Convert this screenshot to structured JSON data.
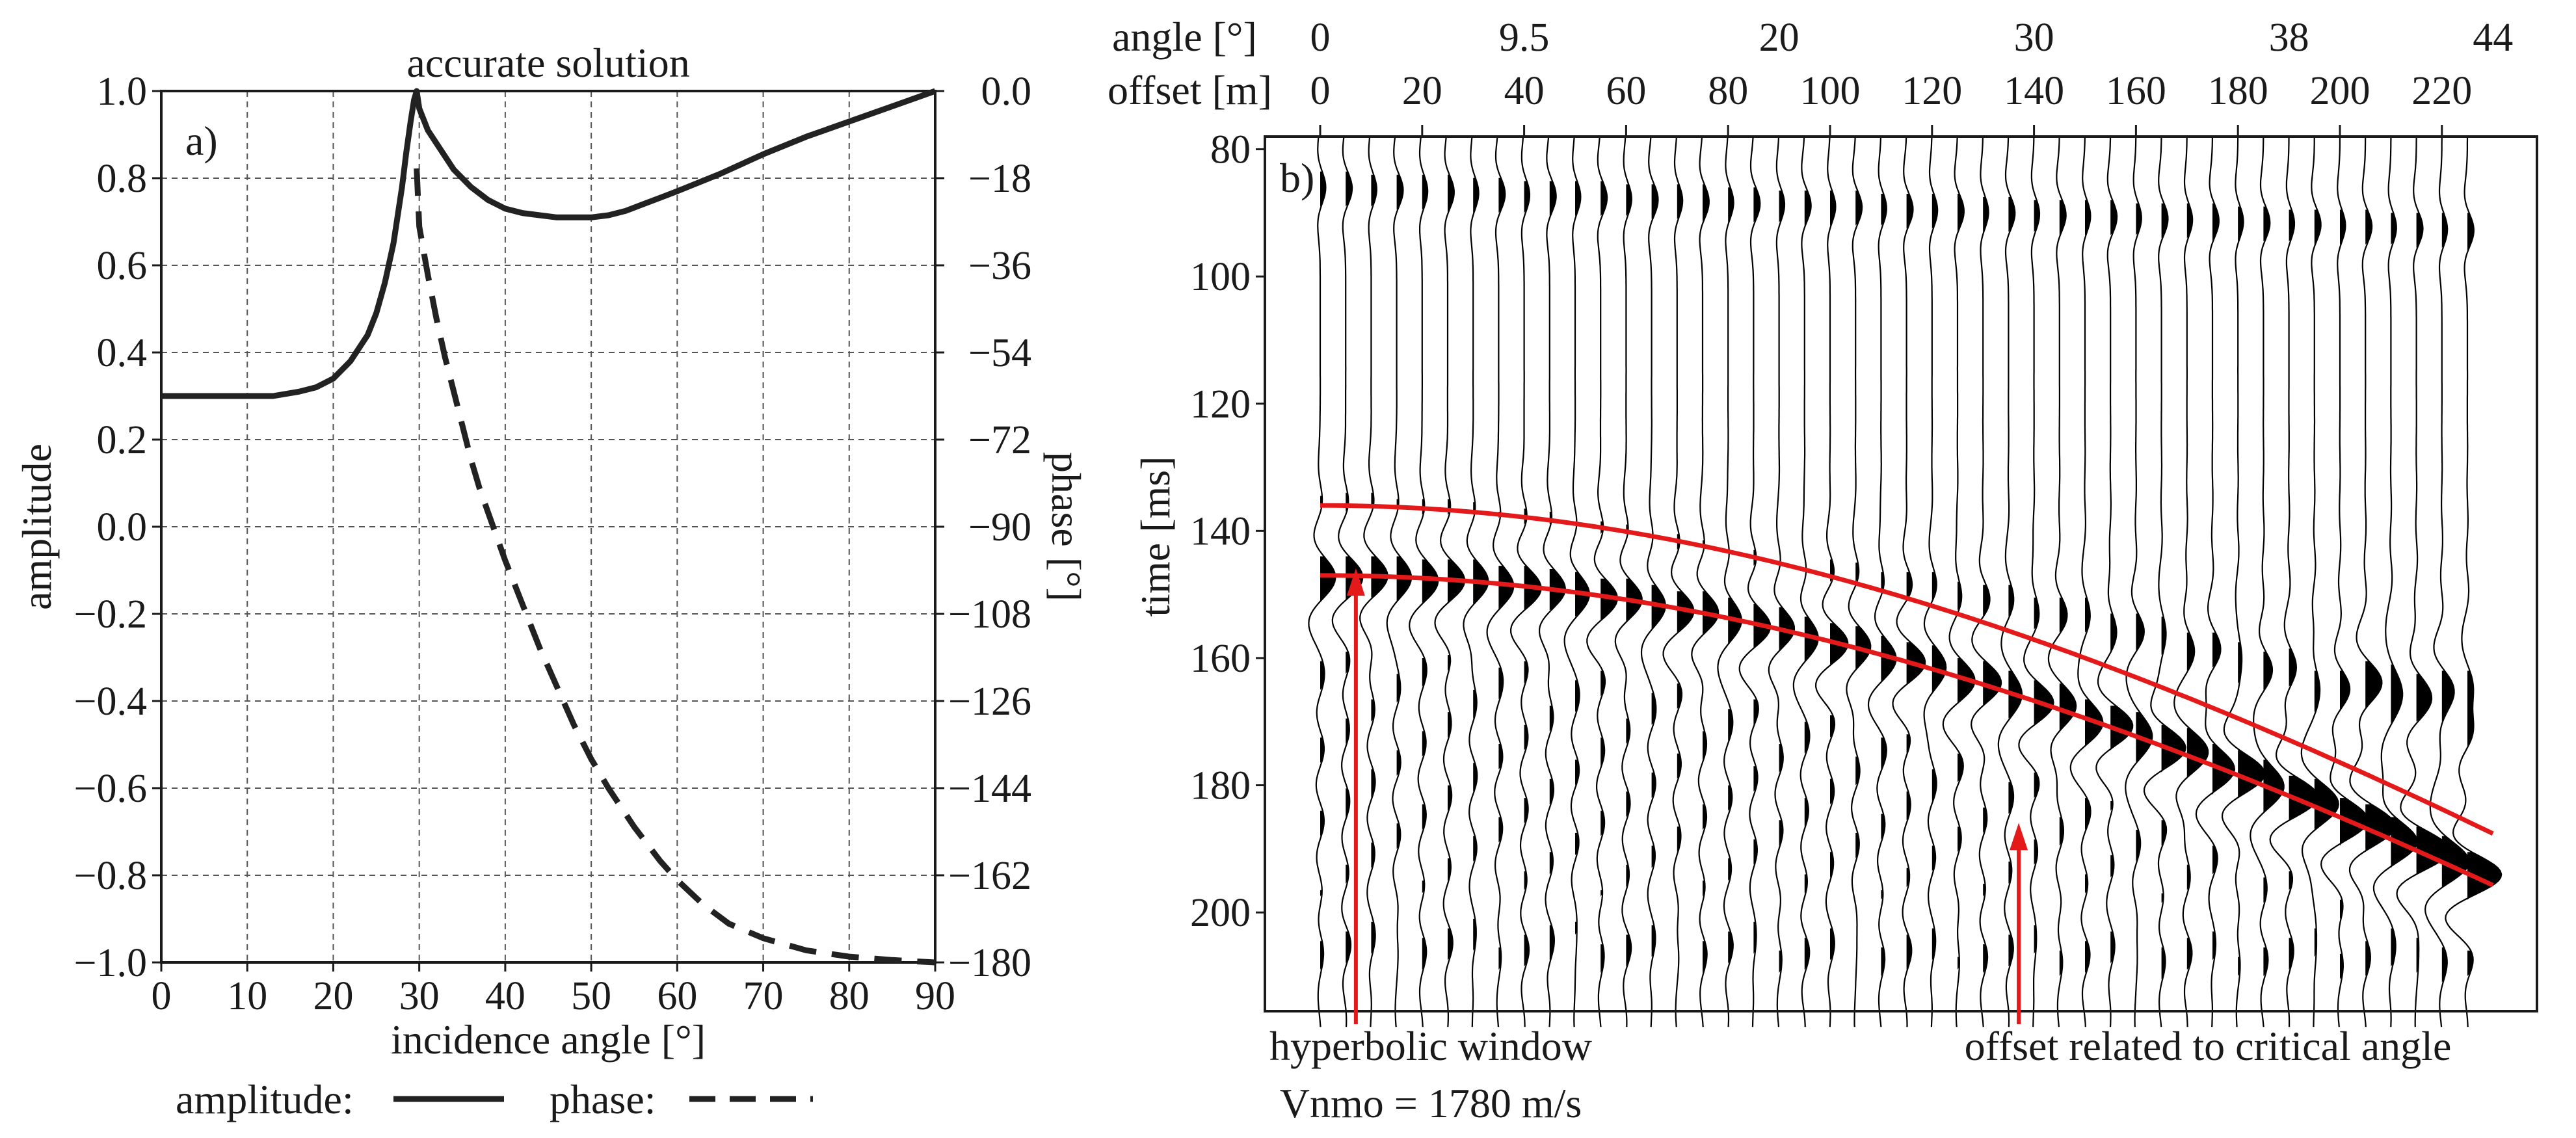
{
  "chart_data": [
    {
      "type": "line",
      "panel_label": "a)",
      "title": "accurate solution",
      "xlabel": "incidence angle [°]",
      "ylabel_left": "amplitude",
      "ylabel_right": "phase [°]",
      "xlim": [
        0,
        90
      ],
      "ylim_left": [
        -1.0,
        1.0
      ],
      "ylim_right": [
        -180,
        0
      ],
      "x_ticks": [
        "0",
        "10",
        "20",
        "30",
        "40",
        "50",
        "60",
        "70",
        "80",
        "90"
      ],
      "y_ticks_left": [
        "1.0",
        "0.8",
        "0.6",
        "0.4",
        "0.2",
        "0.0",
        "−0.2",
        "−0.4",
        "−0.6",
        "−0.8",
        "−1.0"
      ],
      "y_ticks_right": [
        "0.0",
        "−18",
        "−36",
        "−54",
        "−72",
        "−90",
        "−108",
        "−126",
        "−144",
        "−162",
        "−180"
      ],
      "grid": true,
      "legend": {
        "amplitude_label": "amplitude:",
        "phase_label": "phase:",
        "placement": "bottom"
      },
      "series": [
        {
          "name": "amplitude",
          "style": "solid",
          "axis": "left",
          "x": [
            0,
            5,
            10,
            13,
            16,
            18,
            20,
            22,
            24,
            25,
            26,
            27,
            28,
            28.5,
            29,
            29.4,
            29.7,
            30,
            31,
            32,
            34,
            36,
            38,
            40,
            42,
            44,
            46,
            48,
            50,
            52,
            54,
            56,
            58,
            60,
            65,
            70,
            75,
            80,
            85,
            90
          ],
          "y": [
            0.3,
            0.3,
            0.3,
            0.3,
            0.31,
            0.32,
            0.34,
            0.38,
            0.44,
            0.49,
            0.56,
            0.65,
            0.78,
            0.86,
            0.93,
            0.98,
            1.0,
            0.96,
            0.91,
            0.88,
            0.82,
            0.78,
            0.75,
            0.73,
            0.72,
            0.715,
            0.71,
            0.71,
            0.71,
            0.715,
            0.725,
            0.74,
            0.755,
            0.77,
            0.81,
            0.855,
            0.895,
            0.93,
            0.965,
            1.0
          ]
        },
        {
          "name": "phase",
          "style": "dashed",
          "axis": "right",
          "x": [
            29.7,
            30,
            31,
            32,
            33,
            34,
            35,
            36,
            37,
            38,
            40,
            42,
            44,
            46,
            48,
            50,
            52,
            55,
            58,
            60,
            63,
            66,
            70,
            75,
            80,
            85,
            90
          ],
          "y": [
            -16,
            -28,
            -38,
            -47,
            -55,
            -62,
            -69,
            -76,
            -82,
            -87,
            -97,
            -106,
            -115,
            -123,
            -131,
            -138,
            -144,
            -152,
            -159,
            -163,
            -168,
            -172,
            -175,
            -177.5,
            -178.8,
            -179.5,
            -180
          ]
        }
      ]
    },
    {
      "type": "seismic_gather",
      "panel_label": "b)",
      "ylabel": "time [ms]",
      "top_axis_1_label": "angle [°]",
      "top_axis_1_ticks": [
        {
          "label": "0",
          "offset": 0
        },
        {
          "label": "9.5",
          "offset": 40
        },
        {
          "label": "20",
          "offset": 90
        },
        {
          "label": "30",
          "offset": 140
        },
        {
          "label": "38",
          "offset": 190
        },
        {
          "label": "44",
          "offset": 230
        }
      ],
      "top_axis_2_label": "offset [m]",
      "offset_ticks": [
        "0",
        "20",
        "40",
        "60",
        "80",
        "100",
        "120",
        "140",
        "160",
        "180",
        "200",
        "220"
      ],
      "xlim": [
        0,
        235
      ],
      "ylim": [
        78,
        218
      ],
      "time_ticks": [
        "80",
        "100",
        "120",
        "140",
        "160",
        "180",
        "200"
      ],
      "n_traces": 46,
      "trace_spacing_m": 5,
      "t0_ms": 147,
      "critical_offset_m": 140,
      "hyperbola_velocity_m_s": 1780,
      "window": {
        "top_curve_t0_ms": 136,
        "bottom_curve_t0_ms": 147,
        "color": "#e41a1a"
      },
      "annotations": [
        {
          "text_lines": [
            "hyperbolic window",
            "Vnmo = 1780 m/s"
          ],
          "arrow_offset_m": 7,
          "arrow_tip_ms": 150
        },
        {
          "text_lines": [
            "offset related to critical angle"
          ],
          "arrow_offset_m": 137,
          "arrow_tip_ms": 190
        }
      ]
    }
  ]
}
